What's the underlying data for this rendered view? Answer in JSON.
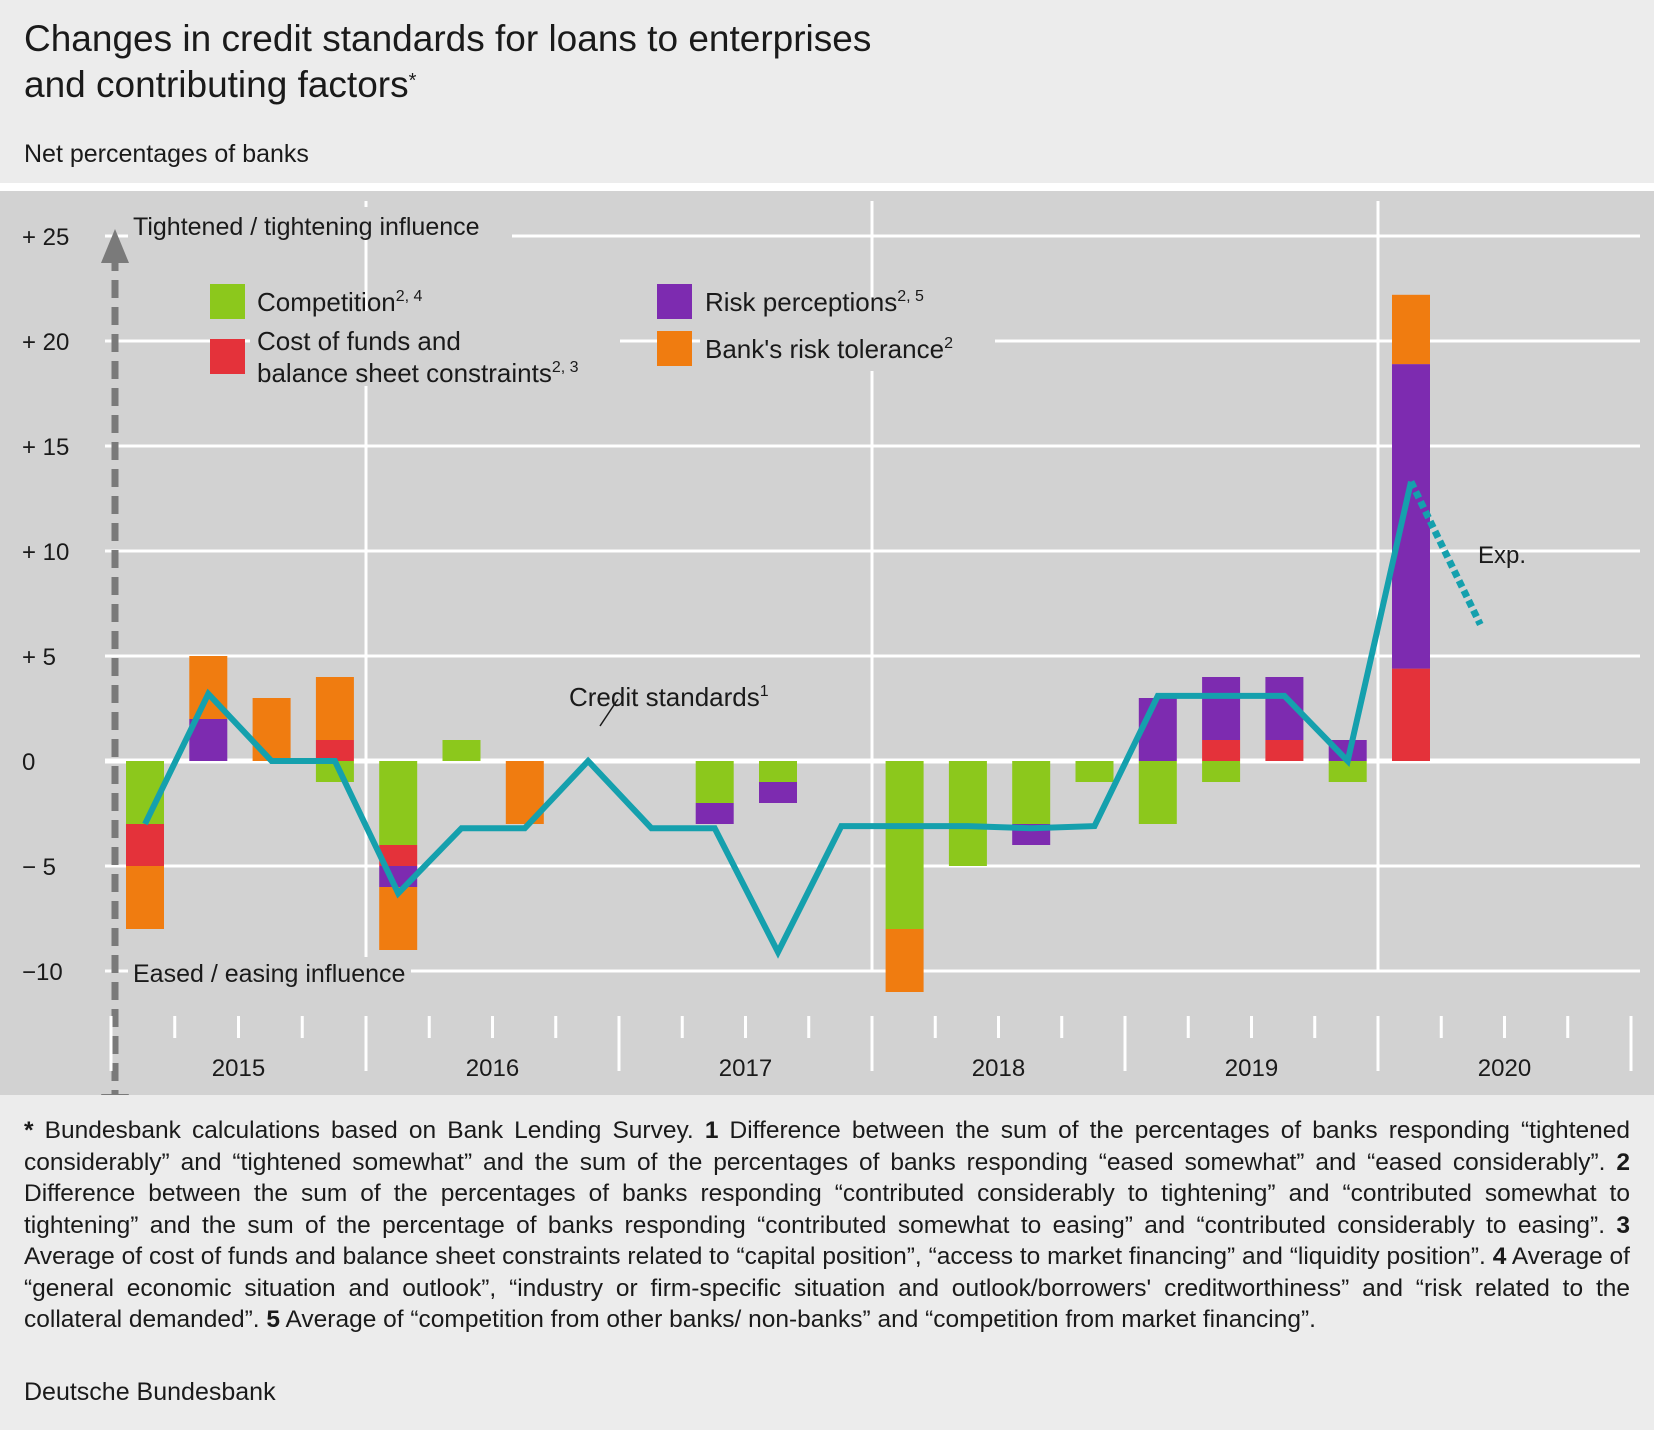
{
  "title_line1": "Changes in credit standards for loans to enterprises",
  "title_line2": "and contributing factors",
  "title_marker": "*",
  "subtitle": "Net percentages of banks",
  "colors": {
    "competition": "#8cc81c",
    "cost_of_funds": "#e4323a",
    "risk_perceptions": "#7d2bb0",
    "risk_tolerance": "#f07c10",
    "credit_standards": "#15a0ad",
    "plot_bg": "#d2d2d2",
    "grid": "#ffffff"
  },
  "chart_data": {
    "type": "bar",
    "ylim": [
      -10,
      25
    ],
    "yticks": [
      25,
      20,
      15,
      10,
      5,
      0,
      -5,
      -10
    ],
    "ytick_labels": [
      "+ 25",
      "+ 20",
      "+ 15",
      "+ 10",
      "+   5",
      "0",
      "−   5",
      "−10"
    ],
    "year_labels": [
      "2015",
      "2016",
      "2017",
      "2018",
      "2019",
      "2020"
    ],
    "arrow_top_label": "Tightened / tightening influence",
    "arrow_bottom_label": "Eased / easing influence",
    "line_label": "Credit standards",
    "line_label_sup": "1",
    "expectation_label": "Exp.",
    "legend": [
      {
        "key": "competition",
        "label": "Competition",
        "sup": "2, 4"
      },
      {
        "key": "cost_of_funds",
        "label": "Cost of funds and",
        "label2": "balance sheet constraints",
        "sup": "2, 3"
      },
      {
        "key": "risk_perceptions",
        "label": "Risk perceptions",
        "sup": "2, 5"
      },
      {
        "key": "risk_tolerance",
        "label": "Bank's risk tolerance",
        "sup": "2"
      }
    ],
    "categories": [
      "2015 Q1",
      "2015 Q2",
      "2015 Q3",
      "2015 Q4",
      "2016 Q1",
      "2016 Q2",
      "2016 Q3",
      "2016 Q4",
      "2017 Q1",
      "2017 Q2",
      "2017 Q3",
      "2017 Q4",
      "2018 Q1",
      "2018 Q2",
      "2018 Q3",
      "2018 Q4",
      "2019 Q1",
      "2019 Q2",
      "2019 Q3",
      "2019 Q4",
      "2020 Q1"
    ],
    "series": [
      {
        "key": "competition",
        "name": "Competition",
        "values": [
          -3,
          0,
          0,
          -1,
          -4,
          1,
          0,
          0,
          0,
          -2,
          -1,
          0,
          -8,
          -5,
          -3,
          -1,
          -3,
          -1,
          0,
          -1,
          0
        ]
      },
      {
        "key": "cost_of_funds",
        "name": "Cost of funds and balance sheet constraints",
        "values": [
          -2,
          0,
          0,
          1,
          -1,
          0,
          0,
          0,
          0,
          0,
          0,
          0,
          0,
          0,
          0,
          0,
          0,
          1,
          1,
          0,
          4.4
        ]
      },
      {
        "key": "risk_perceptions",
        "name": "Risk perceptions",
        "values": [
          0,
          2,
          0,
          0,
          -1,
          0,
          0,
          0,
          0,
          -1,
          -1,
          0,
          0,
          0,
          -1,
          0,
          3,
          3,
          3,
          1,
          14.5
        ]
      },
      {
        "key": "risk_tolerance",
        "name": "Bank's risk tolerance",
        "values": [
          -3,
          3,
          3,
          3,
          -3,
          0,
          -3,
          0,
          0,
          0,
          0,
          0,
          -3,
          0,
          0,
          0,
          0,
          0,
          0,
          0,
          3.3
        ]
      }
    ],
    "credit_standards": [
      -3,
      3.2,
      0,
      0,
      -6.3,
      -3.2,
      -3.2,
      0,
      -3.2,
      -3.2,
      -9.1,
      -3.1,
      -3.1,
      -3.1,
      -3.2,
      -3.1,
      3.1,
      3.1,
      3.1,
      0,
      13.3
    ],
    "expectation": {
      "x_index": 21,
      "value": 6.5
    }
  },
  "notes": [
    {
      "bold": "*",
      "text": " Bundesbank calculations based on Bank Lending Survey. "
    },
    {
      "bold": "1",
      "text": " Difference between the sum of the percentages of banks responding “tightened considerably” and “tightened somewhat” and the sum of the percentages of banks responding “eased somewhat” and “eased considerably”. "
    },
    {
      "bold": "2",
      "text": " Difference between the sum of the percentages of banks responding “contributed considerably to tightening” and “contributed somewhat to tightening” and the sum of the percentage of banks responding “contributed somewhat to easing” and “contributed considerably to easing”. "
    },
    {
      "bold": "3",
      "text": " Average of cost of funds and balance sheet constraints related to “capital position”, “access to market financing” and “liquidity position”. "
    },
    {
      "bold": "4",
      "text": " Average of “general economic situation and outlook”, “industry or firm-specific situation and outlook/borrowers' creditworthiness” and “risk related to the collateral demanded”. "
    },
    {
      "bold": "5",
      "text": " Average of “competition from other banks/ non-banks” and “competition from market financing”."
    }
  ],
  "source": "Deutsche Bundesbank"
}
